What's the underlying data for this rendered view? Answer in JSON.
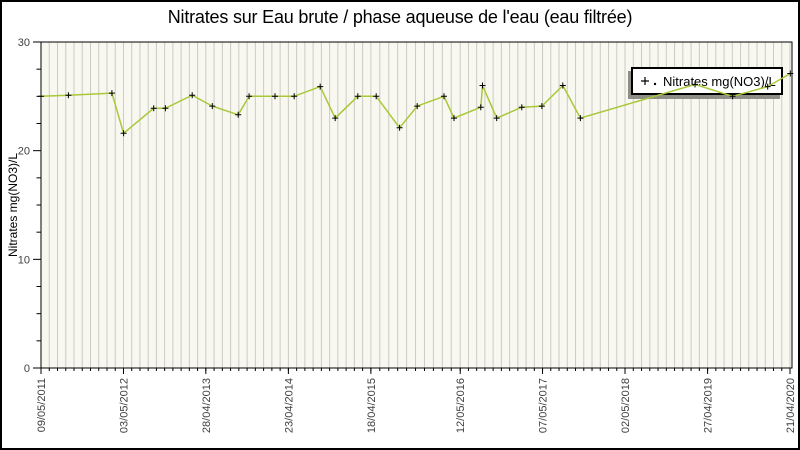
{
  "title": "Nitrates sur Eau brute / phase aqueuse de l'eau (eau filtrée)",
  "legend": {
    "label": "Nitrates mg(NO3)/L"
  },
  "colors": {
    "line": "#a8c838",
    "marker": "#000000",
    "plot_bg": "#f8f8f0",
    "grid": "#cbcbc3",
    "border": "#000000",
    "tick_text": "#404040",
    "legend_shadow": "#8e8e86"
  },
  "chart_data": {
    "type": "line",
    "title": "Nitrates sur Eau brute / phase aqueuse de l'eau (eau filtrée)",
    "xlabel": "",
    "ylabel": "Nitrates mg(NO3)/L",
    "ylim": [
      0,
      30
    ],
    "y_major_ticks": [
      0,
      10,
      20,
      30
    ],
    "y_minor_step": 2.5,
    "grid": "vertical-minor-only",
    "legend_position": "top-right-inside",
    "x_tick_labels": [
      "09/05/2011",
      "03/05/2012",
      "28/04/2013",
      "23/04/2014",
      "18/04/2015",
      "12/05/2016",
      "07/05/2017",
      "02/05/2018",
      "27/04/2019",
      "21/04/2020"
    ],
    "x_tick_years": [
      2011.353,
      2012.339,
      2013.323,
      2014.31,
      2015.296,
      2016.364,
      2017.348,
      2018.334,
      2019.321,
      2020.306
    ],
    "x_minor_divisions": 10,
    "series": [
      {
        "name": "Nitrates mg(NO3)/L",
        "marker": "plus",
        "points": [
          [
            2011.353,
            25.0
          ],
          [
            2011.68,
            25.1
          ],
          [
            2012.2,
            25.3
          ],
          [
            2012.34,
            21.6
          ],
          [
            2012.7,
            23.9
          ],
          [
            2012.84,
            23.9
          ],
          [
            2013.16,
            25.1
          ],
          [
            2013.4,
            24.1
          ],
          [
            2013.71,
            23.3
          ],
          [
            2013.84,
            25.0
          ],
          [
            2014.15,
            25.0
          ],
          [
            2014.38,
            25.0
          ],
          [
            2014.69,
            25.9
          ],
          [
            2014.87,
            23.0
          ],
          [
            2015.14,
            25.0
          ],
          [
            2015.36,
            25.0
          ],
          [
            2015.64,
            22.1
          ],
          [
            2015.85,
            24.1
          ],
          [
            2016.17,
            25.0
          ],
          [
            2016.29,
            23.0
          ],
          [
            2016.61,
            24.0
          ],
          [
            2016.63,
            26.0
          ],
          [
            2016.8,
            23.0
          ],
          [
            2017.1,
            24.0
          ],
          [
            2017.34,
            24.1
          ],
          [
            2017.59,
            26.0
          ],
          [
            2017.8,
            23.0
          ],
          [
            2019.17,
            26.1
          ],
          [
            2019.62,
            25.0
          ],
          [
            2020.04,
            25.9
          ],
          [
            2020.31,
            27.1
          ]
        ]
      }
    ]
  }
}
